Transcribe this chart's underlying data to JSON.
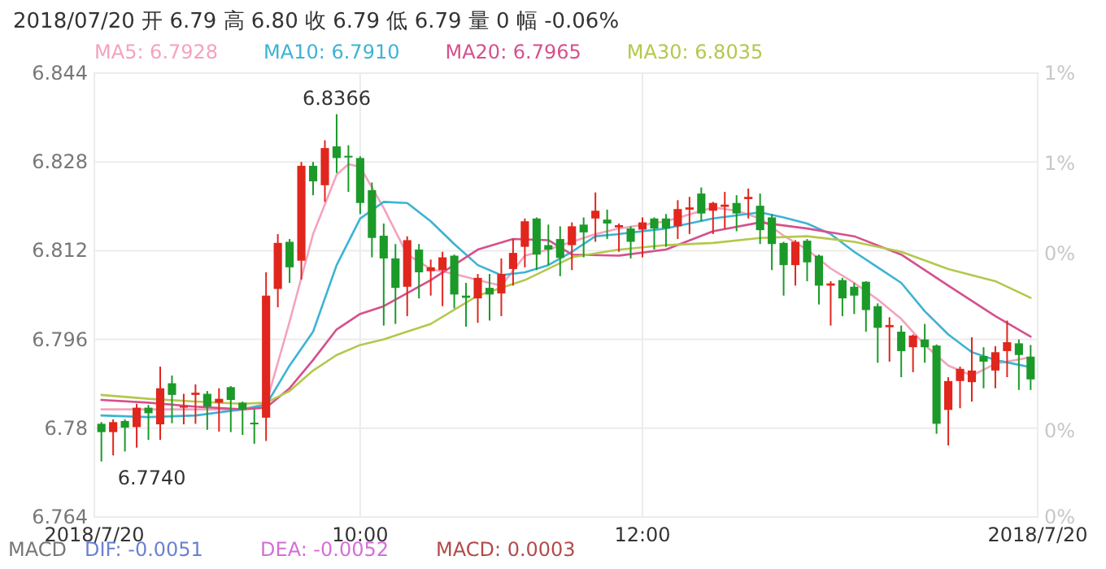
{
  "chart_data": {
    "type": "candlestick",
    "title": "2018/07/20 开 6.79 高 6.80 收 6.79 低 6.79 量 0 幅 -0.06%",
    "x": [
      "2018-07-20T08:10",
      "2018-07-20T08:15",
      "2018-07-20T08:20",
      "2018-07-20T08:25",
      "2018-07-20T08:30",
      "2018-07-20T08:35",
      "2018-07-20T08:40",
      "2018-07-20T08:45",
      "2018-07-20T08:50",
      "2018-07-20T08:55",
      "2018-07-20T09:00",
      "2018-07-20T09:05",
      "2018-07-20T09:10",
      "2018-07-20T09:15",
      "2018-07-20T09:20",
      "2018-07-20T09:25",
      "2018-07-20T09:30",
      "2018-07-20T09:35",
      "2018-07-20T09:40",
      "2018-07-20T09:45",
      "2018-07-20T09:50",
      "2018-07-20T09:55",
      "2018-07-20T10:00",
      "2018-07-20T10:05",
      "2018-07-20T10:10",
      "2018-07-20T10:15",
      "2018-07-20T10:20",
      "2018-07-20T10:25",
      "2018-07-20T10:30",
      "2018-07-20T10:35",
      "2018-07-20T10:40",
      "2018-07-20T10:45",
      "2018-07-20T10:50",
      "2018-07-20T10:55",
      "2018-07-20T11:00",
      "2018-07-20T11:05",
      "2018-07-20T11:10",
      "2018-07-20T11:15",
      "2018-07-20T11:20",
      "2018-07-20T11:25",
      "2018-07-20T11:30",
      "2018-07-20T11:35",
      "2018-07-20T11:40",
      "2018-07-20T11:45",
      "2018-07-20T11:50",
      "2018-07-20T11:55",
      "2018-07-20T12:00",
      "2018-07-20T12:05",
      "2018-07-20T12:10",
      "2018-07-20T12:15",
      "2018-07-20T12:20",
      "2018-07-20T12:25",
      "2018-07-20T12:30",
      "2018-07-20T12:35",
      "2018-07-20T12:40",
      "2018-07-20T12:45",
      "2018-07-20T12:50",
      "2018-07-20T12:55",
      "2018-07-20T13:00",
      "2018-07-20T13:05",
      "2018-07-20T13:10",
      "2018-07-20T13:15",
      "2018-07-20T13:20",
      "2018-07-20T13:25",
      "2018-07-20T13:30",
      "2018-07-20T13:35",
      "2018-07-20T13:40",
      "2018-07-20T13:45",
      "2018-07-20T13:50",
      "2018-07-20T13:55",
      "2018-07-20T14:00",
      "2018-07-20T14:05",
      "2018-07-20T14:10",
      "2018-07-20T14:15",
      "2018-07-20T14:20",
      "2018-07-20T14:25",
      "2018-07-20T14:30",
      "2018-07-20T14:35",
      "2018-07-20T14:40",
      "2018-07-20T14:45"
    ],
    "ohlc": [
      [
        6.7808,
        6.7811,
        6.774,
        6.7793
      ],
      [
        6.7793,
        6.7816,
        6.7751,
        6.7811
      ],
      [
        6.7813,
        6.7816,
        6.7758,
        6.7801
      ],
      [
        6.7802,
        6.7844,
        6.7765,
        6.7837
      ],
      [
        6.7837,
        6.7842,
        6.7779,
        6.7827
      ],
      [
        6.7807,
        6.7911,
        6.7779,
        6.7872
      ],
      [
        6.7881,
        6.7895,
        6.7809,
        6.786
      ],
      [
        6.7837,
        6.7862,
        6.7807,
        6.784
      ],
      [
        6.786,
        6.7879,
        6.7808,
        6.7864
      ],
      [
        6.7862,
        6.7867,
        6.7797,
        6.7839
      ],
      [
        6.7846,
        6.7872,
        6.7794,
        6.7853
      ],
      [
        6.7874,
        6.7876,
        6.7793,
        6.7851
      ],
      [
        6.7846,
        6.7848,
        6.7788,
        6.7834
      ],
      [
        6.781,
        6.7834,
        6.7772,
        6.7807
      ],
      [
        6.7819,
        6.8081,
        6.7777,
        6.8039
      ],
      [
        6.8051,
        6.815,
        6.8018,
        6.8134
      ],
      [
        6.8136,
        6.8141,
        6.8062,
        6.809
      ],
      [
        6.8102,
        6.828,
        6.8068,
        6.8273
      ],
      [
        6.8273,
        6.828,
        6.822,
        6.8245
      ],
      [
        6.8238,
        6.8319,
        6.8208,
        6.8305
      ],
      [
        6.8308,
        6.8366,
        6.826,
        6.8287
      ],
      [
        6.8291,
        6.831,
        6.8226,
        6.8288
      ],
      [
        6.8287,
        6.829,
        6.8186,
        6.8206
      ],
      [
        6.8229,
        6.8243,
        6.8108,
        6.8143
      ],
      [
        6.8147,
        6.8169,
        6.7985,
        6.8106
      ],
      [
        6.8106,
        6.8132,
        6.7988,
        6.8053
      ],
      [
        6.8055,
        6.8146,
        6.8002,
        6.8139
      ],
      [
        6.8122,
        6.8132,
        6.8034,
        6.8081
      ],
      [
        6.8083,
        6.8104,
        6.8039,
        6.809
      ],
      [
        6.8085,
        6.8118,
        6.802,
        6.8108
      ],
      [
        6.8111,
        6.8113,
        6.8016,
        6.8041
      ],
      [
        6.8039,
        6.8062,
        6.7983,
        6.8035
      ],
      [
        6.8034,
        6.8078,
        6.799,
        6.8071
      ],
      [
        6.8053,
        6.8078,
        6.7994,
        6.8041
      ],
      [
        6.8043,
        6.8106,
        6.8002,
        6.8078
      ],
      [
        6.8087,
        6.8141,
        6.8057,
        6.8116
      ],
      [
        6.8127,
        6.8178,
        6.809,
        6.8173
      ],
      [
        6.8178,
        6.818,
        6.8085,
        6.8113
      ],
      [
        6.813,
        6.8167,
        6.8094,
        6.8122
      ],
      [
        6.8141,
        6.8164,
        6.8074,
        6.8107
      ],
      [
        6.813,
        6.8171,
        6.8085,
        6.8164
      ],
      [
        6.8167,
        6.818,
        6.8108,
        6.8153
      ],
      [
        6.8178,
        6.8225,
        6.8136,
        6.8192
      ],
      [
        6.8176,
        6.8194,
        6.8141,
        6.8169
      ],
      [
        6.8162,
        6.8169,
        6.8118,
        6.8166
      ],
      [
        6.816,
        6.8164,
        6.8106,
        6.8136
      ],
      [
        6.8158,
        6.818,
        6.8108,
        6.8171
      ],
      [
        6.8178,
        6.818,
        6.8122,
        6.816
      ],
      [
        6.8178,
        6.8186,
        6.8127,
        6.816
      ],
      [
        6.8164,
        6.8211,
        6.8141,
        6.8195
      ],
      [
        6.8194,
        6.8217,
        6.815,
        6.8198
      ],
      [
        6.8223,
        6.8234,
        6.8173,
        6.8187
      ],
      [
        6.8192,
        6.8208,
        6.815,
        6.8206
      ],
      [
        6.8199,
        6.8226,
        6.816,
        6.8203
      ],
      [
        6.8206,
        6.822,
        6.8155,
        6.8187
      ],
      [
        6.8213,
        6.8232,
        6.8178,
        6.8217
      ],
      [
        6.8201,
        6.8223,
        6.8132,
        6.8157
      ],
      [
        6.818,
        6.8186,
        6.8085,
        6.8132
      ],
      [
        6.8134,
        6.8136,
        6.8039,
        6.8094
      ],
      [
        6.8094,
        6.8139,
        6.8057,
        6.8136
      ],
      [
        6.8138,
        6.8141,
        6.8065,
        6.8099
      ],
      [
        6.8111,
        6.8113,
        6.8023,
        6.8057
      ],
      [
        6.8057,
        6.8065,
        6.7985,
        6.8061
      ],
      [
        6.8067,
        6.8071,
        6.8002,
        6.8034
      ],
      [
        6.8055,
        6.8062,
        6.8006,
        6.8039
      ],
      [
        6.8064,
        6.8065,
        6.7974,
        6.8013
      ],
      [
        6.802,
        6.8025,
        6.7918,
        6.7981
      ],
      [
        6.7982,
        6.8,
        6.792,
        6.7986
      ],
      [
        6.7974,
        6.7985,
        6.7892,
        6.7939
      ],
      [
        6.7946,
        6.7969,
        6.7901,
        6.7967
      ],
      [
        6.796,
        6.7988,
        6.7918,
        6.7946
      ],
      [
        6.7949,
        6.7951,
        6.779,
        6.7808
      ],
      [
        6.7833,
        6.7892,
        6.7769,
        6.7885
      ],
      [
        6.7885,
        6.7911,
        6.7836,
        6.7907
      ],
      [
        6.7883,
        6.7964,
        6.7848,
        6.7904
      ],
      [
        6.793,
        6.7946,
        6.7872,
        6.792
      ],
      [
        6.7904,
        6.7948,
        6.7872,
        6.7937
      ],
      [
        6.7939,
        6.7994,
        6.7892,
        6.7955
      ],
      [
        6.7953,
        6.796,
        6.7869,
        6.7932
      ],
      [
        6.7929,
        6.795,
        6.7869,
        6.7888
      ]
    ],
    "series": [
      {
        "type": "line",
        "name": "MA5: 6.7928",
        "color": "#f4a3bd",
        "x": [
          "2018-07-20T08:10",
          "2018-07-20T08:30",
          "2018-07-20T08:50",
          "2018-07-20T09:10",
          "2018-07-20T09:20",
          "2018-07-20T09:30",
          "2018-07-20T09:40",
          "2018-07-20T09:50",
          "2018-07-20T09:55",
          "2018-07-20T10:00",
          "2018-07-20T10:10",
          "2018-07-20T10:20",
          "2018-07-20T10:30",
          "2018-07-20T10:40",
          "2018-07-20T10:50",
          "2018-07-20T11:00",
          "2018-07-20T11:10",
          "2018-07-20T11:20",
          "2018-07-20T11:30",
          "2018-07-20T11:40",
          "2018-07-20T11:50",
          "2018-07-20T12:10",
          "2018-07-20T12:30",
          "2018-07-20T12:40",
          "2018-07-20T12:50",
          "2018-07-20T13:00",
          "2018-07-20T13:10",
          "2018-07-20T13:20",
          "2018-07-20T13:30",
          "2018-07-20T13:40",
          "2018-07-20T13:50",
          "2018-07-20T14:00",
          "2018-07-20T14:10",
          "2018-07-20T14:20",
          "2018-07-20T14:30",
          "2018-07-20T14:45"
        ],
        "values": [
          6.7834,
          6.7834,
          6.7834,
          6.7834,
          6.7844,
          6.7992,
          6.815,
          6.8257,
          6.8276,
          6.8271,
          6.8197,
          6.8113,
          6.8087,
          6.8078,
          6.8067,
          6.8057,
          6.8111,
          6.8122,
          6.8136,
          6.815,
          6.816,
          6.8173,
          6.8198,
          6.8192,
          6.8178,
          6.8147,
          6.8122,
          6.8088,
          6.8062,
          6.8032,
          6.7997,
          6.795,
          6.7913,
          6.7895,
          6.7916,
          6.7928
        ]
      },
      {
        "type": "line",
        "name": "MA10: 6.7910",
        "color": "#3db3d3",
        "x": [
          "2018-07-20T08:10",
          "2018-07-20T08:30",
          "2018-07-20T08:50",
          "2018-07-20T09:10",
          "2018-07-20T09:20",
          "2018-07-20T09:30",
          "2018-07-20T09:40",
          "2018-07-20T09:50",
          "2018-07-20T10:00",
          "2018-07-20T10:10",
          "2018-07-20T10:20",
          "2018-07-20T10:30",
          "2018-07-20T10:40",
          "2018-07-20T10:50",
          "2018-07-20T11:00",
          "2018-07-20T11:10",
          "2018-07-20T11:20",
          "2018-07-20T11:30",
          "2018-07-20T11:40",
          "2018-07-20T11:50",
          "2018-07-20T12:10",
          "2018-07-20T12:30",
          "2018-07-20T12:50",
          "2018-07-20T13:00",
          "2018-07-20T13:10",
          "2018-07-20T13:20",
          "2018-07-20T13:30",
          "2018-07-20T13:40",
          "2018-07-20T13:50",
          "2018-07-20T14:00",
          "2018-07-20T14:10",
          "2018-07-20T14:20",
          "2018-07-20T14:30",
          "2018-07-20T14:45"
        ],
        "values": [
          6.7823,
          6.782,
          6.7823,
          6.7834,
          6.7842,
          6.7913,
          6.7974,
          6.8094,
          6.8178,
          6.8208,
          6.8206,
          6.8173,
          6.8132,
          6.8094,
          6.8076,
          6.8081,
          6.8094,
          6.8118,
          6.8146,
          6.815,
          6.816,
          6.8178,
          6.8189,
          6.818,
          6.8169,
          6.815,
          6.8118,
          6.809,
          6.8062,
          6.8011,
          6.7969,
          6.7937,
          6.7923,
          6.791
        ]
      },
      {
        "type": "line",
        "name": "MA20: 6.7965",
        "color": "#d6508c",
        "x": [
          "2018-07-20T08:10",
          "2018-07-20T08:30",
          "2018-07-20T08:50",
          "2018-07-20T09:10",
          "2018-07-20T09:20",
          "2018-07-20T09:30",
          "2018-07-20T09:40",
          "2018-07-20T09:50",
          "2018-07-20T10:00",
          "2018-07-20T10:10",
          "2018-07-20T10:30",
          "2018-07-20T10:50",
          "2018-07-20T11:05",
          "2018-07-20T11:20",
          "2018-07-20T11:30",
          "2018-07-20T11:50",
          "2018-07-20T12:10",
          "2018-07-20T12:30",
          "2018-07-20T12:50",
          "2018-07-20T13:10",
          "2018-07-20T13:30",
          "2018-07-20T13:50",
          "2018-07-20T14:10",
          "2018-07-20T14:30",
          "2018-07-20T14:45"
        ],
        "values": [
          6.7851,
          6.7846,
          6.7839,
          6.7834,
          6.7837,
          6.7872,
          6.7923,
          6.7978,
          6.8006,
          6.802,
          6.8067,
          6.8122,
          6.8141,
          6.8139,
          6.8113,
          6.8111,
          6.8122,
          6.8155,
          6.8171,
          6.816,
          6.8146,
          6.8113,
          6.8057,
          6.8002,
          6.7965
        ]
      },
      {
        "type": "line",
        "name": "MA30: 6.8035",
        "color": "#b4c84c",
        "x": [
          "2018-07-20T08:10",
          "2018-07-20T08:30",
          "2018-07-20T08:50",
          "2018-07-20T09:10",
          "2018-07-20T09:20",
          "2018-07-20T09:30",
          "2018-07-20T09:40",
          "2018-07-20T09:50",
          "2018-07-20T10:00",
          "2018-07-20T10:10",
          "2018-07-20T10:30",
          "2018-07-20T10:50",
          "2018-07-20T11:10",
          "2018-07-20T11:30",
          "2018-07-20T11:50",
          "2018-07-20T12:10",
          "2018-07-20T12:30",
          "2018-07-20T12:50",
          "2018-07-20T13:10",
          "2018-07-20T13:30",
          "2018-07-20T13:50",
          "2018-07-20T14:10",
          "2018-07-20T14:30",
          "2018-07-20T14:45"
        ],
        "values": [
          6.786,
          6.7853,
          6.7848,
          6.7844,
          6.7846,
          6.7867,
          6.7904,
          6.7932,
          6.795,
          6.796,
          6.7988,
          6.8039,
          6.8067,
          6.8108,
          6.8122,
          6.813,
          6.8134,
          6.8143,
          6.8146,
          6.8136,
          6.8118,
          6.8087,
          6.8065,
          6.8035
        ]
      }
    ],
    "xlim": [
      "2018-07-20T08:07",
      "2018-07-20T14:48"
    ],
    "xticks": [
      {
        "value": "2018-07-20T08:07",
        "label": "2018/7/20"
      },
      {
        "value": "2018-07-20T10:00",
        "label": "10:00"
      },
      {
        "value": "2018-07-20T12:00",
        "label": "12:00"
      },
      {
        "value": "2018-07-20T14:48",
        "label": "2018/7/20"
      }
    ],
    "ylim": [
      6.764,
      6.844
    ],
    "yticks": [
      6.764,
      6.78,
      6.796,
      6.812,
      6.828,
      6.844
    ],
    "y2lim": [
      -0.44,
      0.74
    ],
    "y2ticks": [
      {
        "value": -0.44,
        "label": "0%"
      },
      {
        "value": -0.21,
        "label": "0%"
      },
      {
        "value": 0.26,
        "label": "0%"
      },
      {
        "value": 0.5,
        "label": "1%"
      },
      {
        "value": 0.74,
        "label": "1%"
      }
    ],
    "grid": true,
    "legend": "top",
    "annotations": [
      {
        "text": "6.8366",
        "x": "2018-07-20T09:50",
        "y": 6.8366
      },
      {
        "text": "6.7740",
        "x": "2018-07-20T08:10",
        "y": 6.774
      },
      "MACD",
      "DIF: -0.0051",
      "DEA: -0.0052",
      "MACD: 0.0003"
    ]
  }
}
